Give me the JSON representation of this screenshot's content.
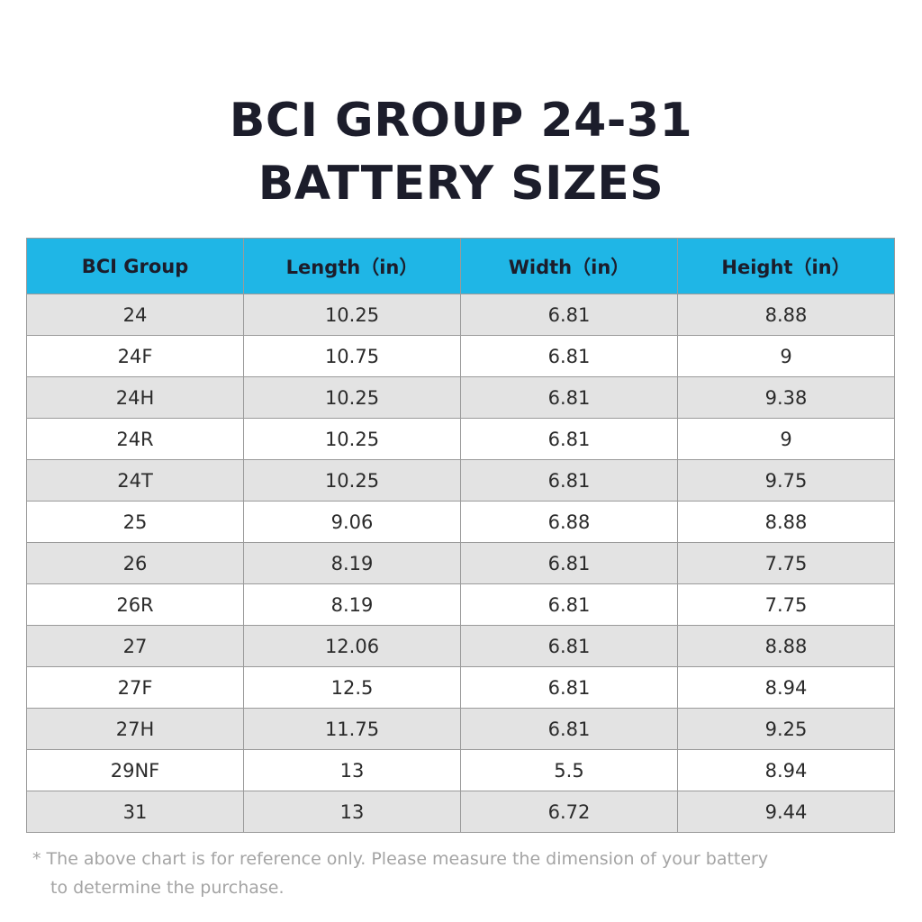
{
  "title": {
    "line1": "BCI GROUP 24-31",
    "line2": "BATTERY SIZES"
  },
  "table": {
    "headers": [
      "BCI Group",
      "Length（in）",
      "Width（in）",
      "Height（in）"
    ],
    "rows": [
      [
        "24",
        "10.25",
        "6.81",
        "8.88"
      ],
      [
        "24F",
        "10.75",
        "6.81",
        "9"
      ],
      [
        "24H",
        "10.25",
        "6.81",
        "9.38"
      ],
      [
        "24R",
        "10.25",
        "6.81",
        "9"
      ],
      [
        "24T",
        "10.25",
        "6.81",
        "9.75"
      ],
      [
        "25",
        "9.06",
        "6.88",
        "8.88"
      ],
      [
        "26",
        "8.19",
        "6.81",
        "7.75"
      ],
      [
        "26R",
        "8.19",
        "6.81",
        "7.75"
      ],
      [
        "27",
        "12.06",
        "6.81",
        "8.88"
      ],
      [
        "27F",
        "12.5",
        "6.81",
        "8.94"
      ],
      [
        "27H",
        "11.75",
        "6.81",
        "9.25"
      ],
      [
        "29NF",
        "13",
        "5.5",
        "8.94"
      ],
      [
        "31",
        "13",
        "6.72",
        "9.44"
      ]
    ]
  },
  "footnote": {
    "line1": "* The above chart is for reference only. Please measure the dimension of your battery",
    "line2": "to determine the purchase."
  },
  "colors": {
    "header_bg": "#1fb6e6",
    "odd_row_bg": "#e3e3e3",
    "even_row_bg": "#ffffff",
    "title_text": "#1c1d2b",
    "footnote_text": "#a4a4a4"
  }
}
